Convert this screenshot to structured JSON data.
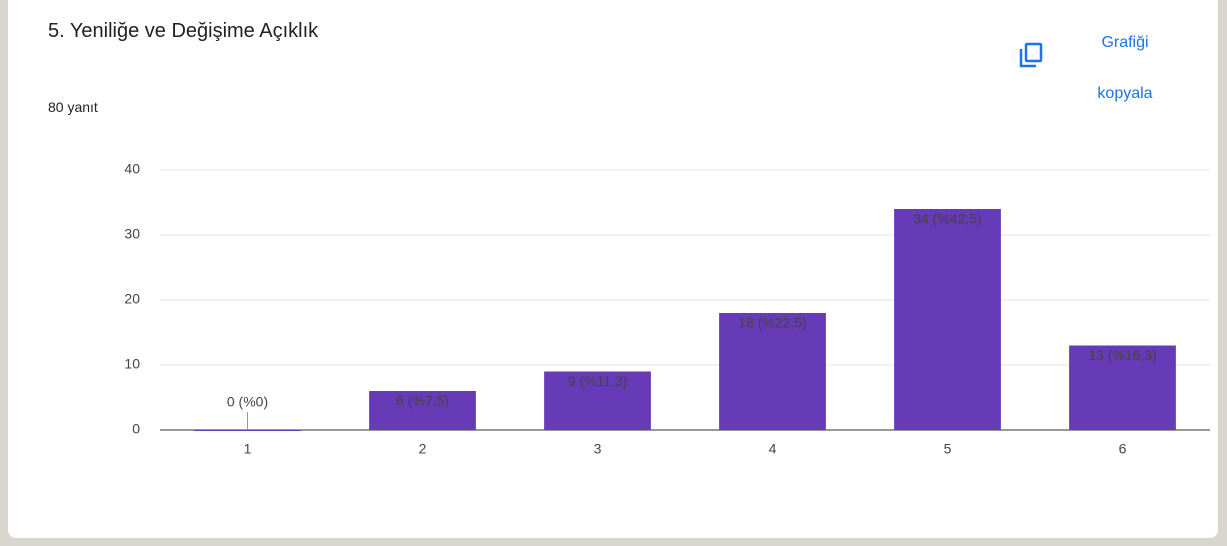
{
  "chart_data": {
    "type": "bar",
    "title": "5.  Yeniliğe ve Değişime Açıklık",
    "subtitle": "80 yanıt",
    "copy_button": "Grafiği kopyala",
    "categories": [
      "1",
      "2",
      "3",
      "4",
      "5",
      "6"
    ],
    "values": [
      0,
      6,
      9,
      18,
      34,
      13
    ],
    "value_labels": [
      "0 (%0)",
      "6 (%7,5)",
      "9 (%11,3)",
      "18 (%22,5)",
      "34 (%42,5)",
      "13 (%16,3)"
    ],
    "color": "#673ab7",
    "ylim": [
      0,
      40
    ],
    "yticks": [
      0,
      10,
      20,
      30,
      40
    ],
    "grid": true
  }
}
